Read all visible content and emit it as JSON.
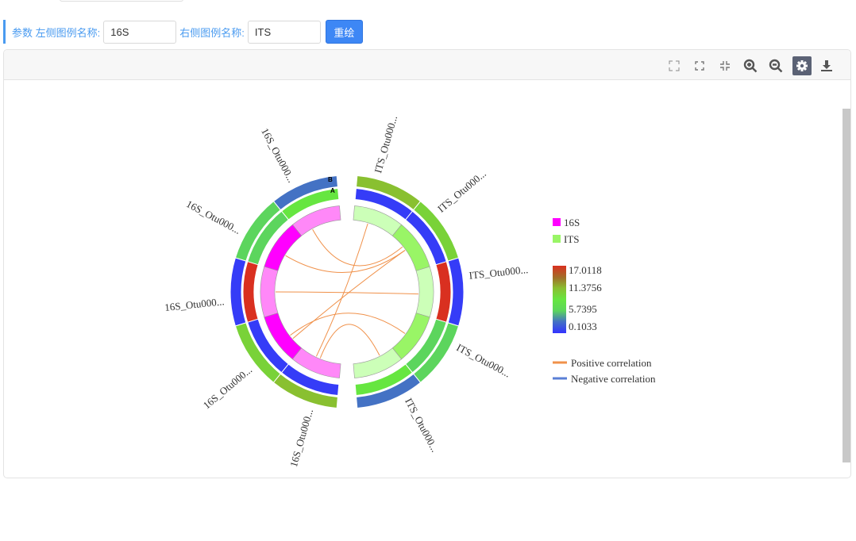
{
  "params": {
    "prefix": "参数",
    "left_label": "左侧图例名称:",
    "left_value": "16S",
    "right_label": "右侧图例名称:",
    "right_value": "ITS",
    "redraw": "重绘"
  },
  "toolbar": [
    "expand-icon",
    "fullscreen-icon",
    "collapse-icon",
    "zoom-in-icon",
    "zoom-out-icon",
    "gear-icon",
    "download-icon"
  ],
  "chart_data": {
    "type": "chord",
    "groups": [
      {
        "name": "16S",
        "color": "#ff00ff",
        "segments": [
          {
            "label": "16S_Otu000...",
            "inner": "#ff88f8",
            "B": 3.0,
            "A": 8.5
          },
          {
            "label": "16S_Otu000...",
            "inner": "#ff00ff",
            "B": 5.7,
            "A": 5.7
          },
          {
            "label": "16S_Otu000...",
            "inner": "#ff88f8",
            "B": 0.5,
            "A": 17.0
          },
          {
            "label": "16S_Otu000...",
            "inner": "#ff00ff",
            "B": 10.0,
            "A": 0.5
          },
          {
            "label": "16S_Otu000...",
            "inner": "#ff88f8",
            "B": 11.3,
            "A": 0.5
          }
        ]
      },
      {
        "name": "ITS",
        "color": "#99f566",
        "segments": [
          {
            "label": "ITS_Otu000...",
            "inner": "#ccffb8",
            "B": 11.3,
            "A": 0.5
          },
          {
            "label": "ITS_Otu000...",
            "inner": "#99f566",
            "B": 10.0,
            "A": 0.5
          },
          {
            "label": "ITS_Otu000...",
            "inner": "#ccffb8",
            "B": 0.5,
            "A": 17.0
          },
          {
            "label": "ITS_Otu000...",
            "inner": "#99f566",
            "B": 5.7,
            "A": 5.7
          },
          {
            "label": "ITS_Otu000...",
            "inner": "#ccffb8",
            "B": 3.0,
            "A": 8.5
          }
        ]
      }
    ],
    "track_labels": {
      "B": "B",
      "A": "A"
    },
    "links": [
      [
        0,
        1,
        "positive"
      ],
      [
        1,
        1,
        "positive"
      ],
      [
        2,
        2,
        "positive"
      ],
      [
        4,
        0,
        "positive"
      ],
      [
        3,
        1,
        "positive"
      ],
      [
        3,
        3,
        "positive"
      ],
      [
        4,
        4,
        "positive"
      ]
    ],
    "color_scale": {
      "ticks": [
        "17.0118",
        "11.3756",
        "5.7395",
        "0.1033"
      ],
      "min": 0.1033,
      "max": 17.0118,
      "stops": [
        [
          0.1033,
          "#3333ff"
        ],
        [
          3,
          "#4472c4"
        ],
        [
          5.7395,
          "#5cd65c"
        ],
        [
          8.5,
          "#66e640"
        ],
        [
          11.3756,
          "#8abf30"
        ],
        [
          14,
          "#a07028"
        ],
        [
          17.0118,
          "#d93020"
        ]
      ]
    },
    "legend": {
      "groups": [
        "16S",
        "ITS"
      ],
      "lines": [
        {
          "label": "Positive correlation",
          "color": "#f0914a"
        },
        {
          "label": "Negative correlation",
          "color": "#5a7fd6"
        }
      ]
    }
  }
}
